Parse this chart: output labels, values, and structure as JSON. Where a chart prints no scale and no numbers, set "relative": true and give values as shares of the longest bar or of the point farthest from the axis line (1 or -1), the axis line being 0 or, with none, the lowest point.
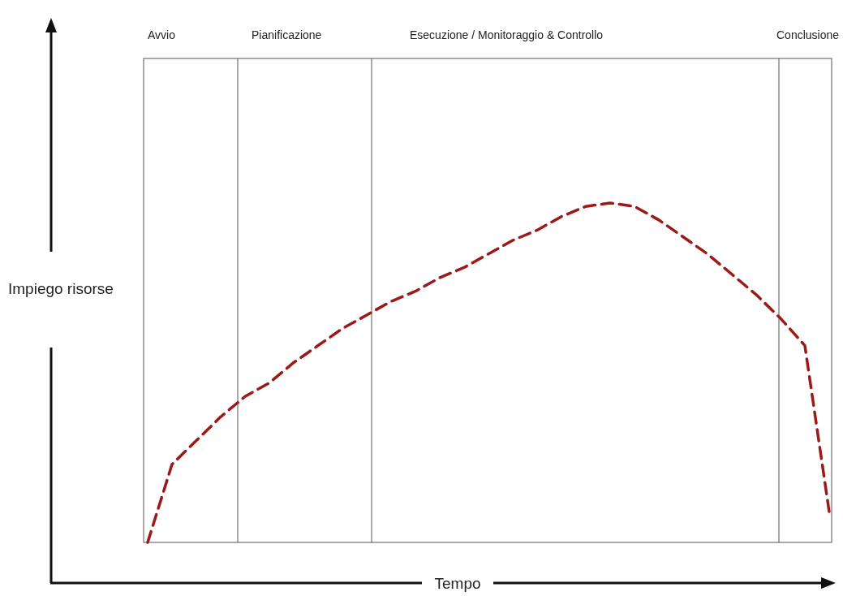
{
  "chart_data": {
    "type": "line",
    "xlabel": "Tempo",
    "ylabel": "Impiego risorse",
    "relative": true,
    "marker": "none",
    "line_style": "dashed",
    "annotations": [
      "Avvio",
      "Pianificazione",
      "Esecuzione / Monitoraggio & Controllo",
      "Conclusione"
    ],
    "categories": [
      null,
      null,
      null,
      null,
      null,
      null,
      null,
      null,
      null,
      null,
      null,
      null,
      null,
      null,
      null,
      null,
      null,
      null,
      null,
      null,
      null,
      null,
      null,
      null,
      null,
      null,
      null,
      null,
      null
    ],
    "series": [
      {
        "color": "#9b1b1b",
        "values": [
          0,
          0.23,
          0.3,
          0.37,
          0.43,
          0.47,
          0.53,
          0.58,
          0.63,
          0.67,
          0.71,
          0.74,
          0.78,
          0.81,
          0.85,
          0.89,
          0.92,
          0.96,
          0.99,
          1,
          0.99,
          0.95,
          0.9,
          0.85,
          0.79,
          0.73,
          0.66,
          0.58,
          0.09
        ]
      }
    ]
  }
}
